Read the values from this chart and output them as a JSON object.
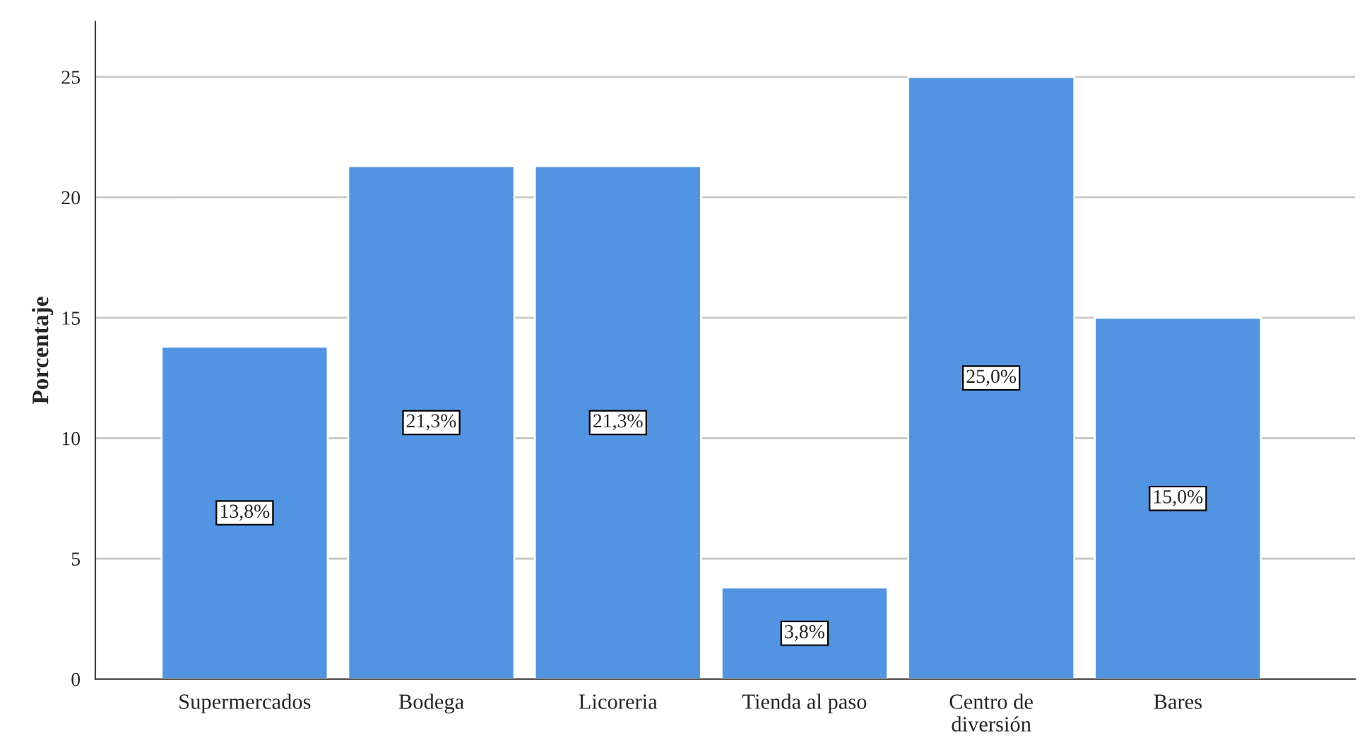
{
  "chart_data": {
    "type": "bar",
    "ylabel": "Porcentaje",
    "categories": [
      "Supermercados",
      "Bodega",
      "Licoreria",
      "Tienda al paso",
      "Centro de\ndiversión",
      "Bares"
    ],
    "values": [
      13.8,
      21.3,
      21.3,
      3.8,
      25.0,
      15.0
    ],
    "value_labels": [
      "13,8%",
      "21,3%",
      "21,3%",
      "3,8%",
      "25,0%",
      "15,0%"
    ],
    "color": "#5294e2",
    "ylim": [
      0,
      27.3
    ],
    "yticks": [
      0,
      5,
      10,
      15,
      20,
      25
    ],
    "grid": "y"
  }
}
